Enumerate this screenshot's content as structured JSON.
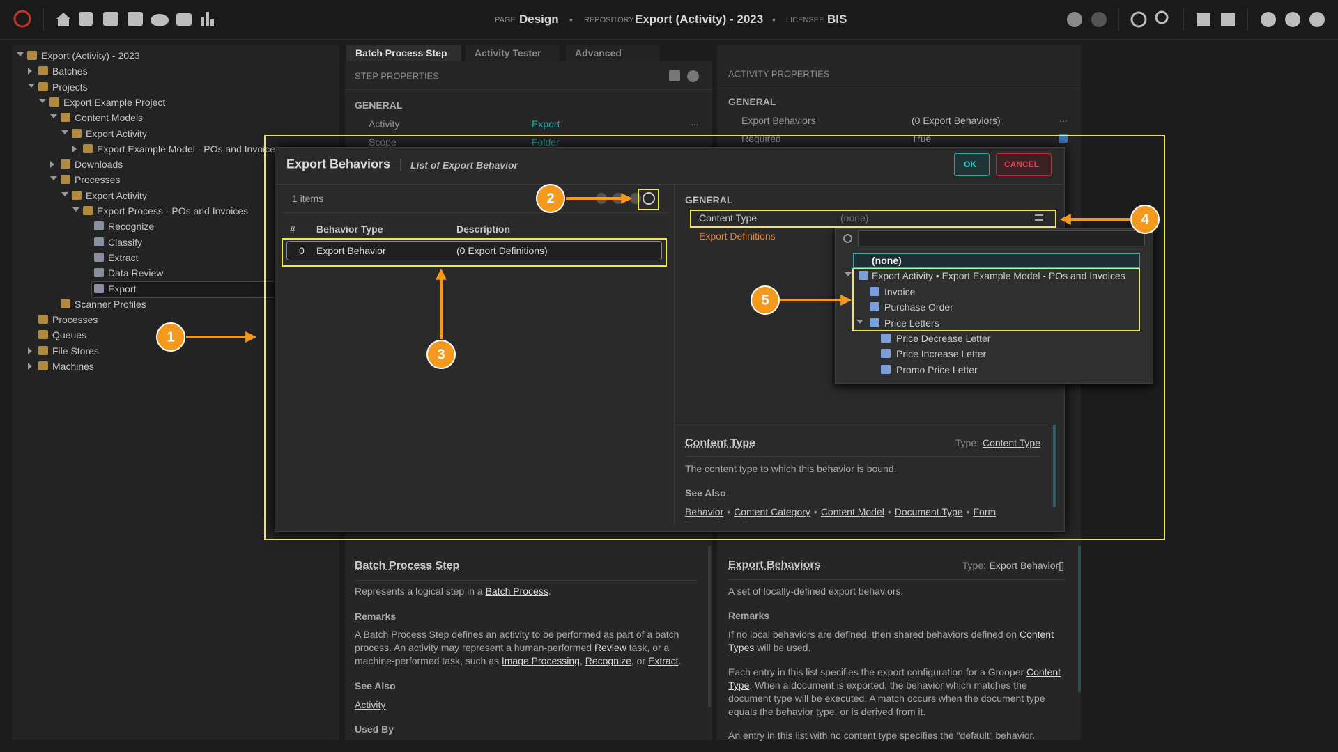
{
  "header": {
    "page_label": "PAGE",
    "page": "Design",
    "separator": "•",
    "repository_label": "REPOSITORY",
    "repository": "Export (Activity) - 2023",
    "licensee_label": "LICENSEE",
    "licensee": "BIS"
  },
  "tree": {
    "nodes": [
      {
        "label": "Export (Activity) - 2023",
        "depth": 0,
        "expanded": true
      },
      {
        "label": "Batches",
        "depth": 1,
        "expanded": false
      },
      {
        "label": "Projects",
        "depth": 1,
        "expanded": true
      },
      {
        "label": "Export Example Project",
        "depth": 2,
        "expanded": true
      },
      {
        "label": "Content Models",
        "depth": 3,
        "expanded": true
      },
      {
        "label": "Export Activity",
        "depth": 4,
        "expanded": true
      },
      {
        "label": "Export Example Model - POs and Invoices",
        "depth": 5,
        "expanded": false
      },
      {
        "label": "Downloads",
        "depth": 3,
        "expanded": false
      },
      {
        "label": "Processes",
        "depth": 3,
        "expanded": true
      },
      {
        "label": "Export Activity",
        "depth": 4,
        "expanded": true
      },
      {
        "label": "Export Process - POs and Invoices",
        "depth": 5,
        "expanded": true
      },
      {
        "label": "Recognize",
        "depth": 6
      },
      {
        "label": "Classify",
        "depth": 6
      },
      {
        "label": "Extract",
        "depth": 6
      },
      {
        "label": "Data Review",
        "depth": 6
      },
      {
        "label": "Export",
        "depth": 6,
        "selected": true
      },
      {
        "label": "Scanner Profiles",
        "depth": 3
      },
      {
        "label": "Processes",
        "depth": 1
      },
      {
        "label": "Queues",
        "depth": 1
      },
      {
        "label": "File Stores",
        "depth": 1,
        "expanded": false
      },
      {
        "label": "Machines",
        "depth": 1,
        "expanded": false
      }
    ]
  },
  "tabs": {
    "items": [
      "Batch Process Step",
      "Activity Tester",
      "Advanced"
    ],
    "active": 0
  },
  "step_properties": {
    "title": "STEP PROPERTIES",
    "section": "GENERAL",
    "rows": [
      {
        "label": "Activity",
        "value": "Export",
        "button": "..."
      },
      {
        "label": "Scope",
        "value": "Folder"
      }
    ]
  },
  "activity_properties": {
    "title": "ACTIVITY PROPERTIES",
    "section": "GENERAL",
    "rows": [
      {
        "label": "Export Behaviors",
        "value": "(0 Export Behaviors)",
        "button": "..."
      },
      {
        "label": "Required",
        "value": "True"
      }
    ]
  },
  "dialog": {
    "title": "Export Behaviors",
    "title_separator": "|",
    "subtitle": "List of Export Behavior",
    "ok": "OK",
    "cancel": "CANCEL",
    "count": "1 items",
    "columns": [
      "#",
      "Behavior Type",
      "Description"
    ],
    "rows": [
      [
        "0",
        "Export Behavior",
        "(0 Export Definitions)"
      ]
    ],
    "section": "GENERAL",
    "content_type_label": "Content Type",
    "content_type_value": "(none)",
    "export_definitions": "Export Definitions",
    "dropdown": [
      {
        "label": "(none)",
        "depth": 0,
        "selected": true
      },
      {
        "label": "Export Activity • Export Example Model - POs and Invoices",
        "depth": 0,
        "expanded": true
      },
      {
        "label": "Invoice",
        "depth": 1
      },
      {
        "label": "Purchase Order",
        "depth": 1
      },
      {
        "label": "Price Letters",
        "depth": 1,
        "expanded": true
      },
      {
        "label": "Price Decrease Letter",
        "depth": 2
      },
      {
        "label": "Price Increase Letter",
        "depth": 2
      },
      {
        "label": "Promo Price Letter",
        "depth": 2
      }
    ],
    "help": {
      "title": "Content Type",
      "type_label": "Type:",
      "type_link": "Content Type",
      "description": "The content type to which this behavior is bound.",
      "see_also": "See Also",
      "link_separator": "•",
      "links": [
        "Behavior",
        "Content Category",
        "Content Model",
        "Document Type",
        "Form Type",
        "Page Type"
      ]
    }
  },
  "step_help": {
    "title": "Batch Process Step",
    "description": [
      "Represents a logical step in a ",
      {
        "link": "Batch Process"
      },
      "."
    ],
    "remarks": "Remarks",
    "remarks_text": [
      "A Batch Process Step defines an activity to be performed as part of a batch process. An activity may represent a human-performed ",
      {
        "link": "Review"
      },
      " task, or a machine-performed task, such as ",
      {
        "link": "Image Processing"
      },
      ", ",
      {
        "link": "Recognize"
      },
      ", or ",
      {
        "link": "Extract"
      },
      "."
    ],
    "see_also": "See Also",
    "links": [
      "Activity"
    ],
    "used_by": "Used By"
  },
  "behavior_help": {
    "title": "Export Behaviors",
    "type_label": "Type:",
    "type_link": "Export Behavior[]",
    "description": "A set of locally-defined export behaviors.",
    "remarks": "Remarks",
    "paragraphs": [
      [
        "If no local behaviors are defined, then shared behaviors defined on ",
        {
          "link": "Content Types"
        },
        " will be used."
      ],
      [
        "Each entry in this list specifies the export configuration for a Grooper ",
        {
          "link": "Content Type"
        },
        ". When a document is exported, the behavior which matches the document type will be executed. A match occurs when the document type equals the behavior type, or is derived from it."
      ],
      [
        "An entry in this list with no content type specifies the \"default\" behavior."
      ]
    ]
  },
  "callouts": [
    "1",
    "2",
    "3",
    "4",
    "5"
  ]
}
